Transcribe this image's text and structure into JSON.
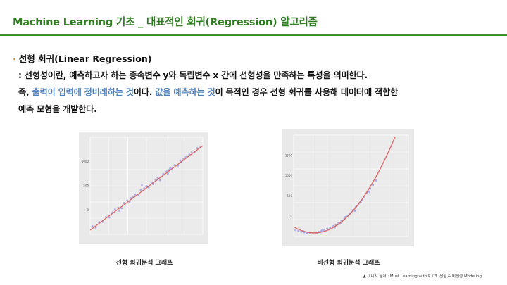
{
  "slide": {
    "title": "Machine Learning 기초 _ 대표적인 회귀(Regression) 알고리즘",
    "bullet": "선형 회귀(Linear Regression)",
    "line1": ": 선형성이란, 예측하고자 하는 종속변수 y와 독립변수 x 간에 선형성을 만족하는 특성을 의미한다.",
    "line2_a": "즉, ",
    "line2_hl1": "출력이 입력에 정비례하는 것",
    "line2_b": "이다. ",
    "line2_hl2": "값을 예측하는 것",
    "line2_c": "이 목적인 경우 선형 회귀를 사용해 데이터에 적합한",
    "line3": "예측 모형을 개발한다.",
    "caption_linear": "선형 회귀분석 그래프",
    "caption_nonlinear": "비선형 회귀분석 그래프",
    "source": "▲ 이미지 출처 : Must Learning with R / 3. 선형 & 비선형 Modeling"
  },
  "chart_data": [
    {
      "type": "scatter",
      "title": "",
      "xlabel": "",
      "ylabel": "",
      "xlim": [
        0,
        10
      ],
      "ylim": [
        -1,
        22
      ],
      "ytick_labels": [
        "1000",
        "500",
        "0"
      ],
      "xtick_labels": [
        "",
        "",
        ""
      ],
      "fit_line": {
        "x": [
          0,
          10
        ],
        "y": [
          0,
          20
        ]
      },
      "colors": {
        "points": "#a8a8e8",
        "fit": "#d9534f",
        "panel": "#e9e9e9"
      },
      "points": [
        [
          0.2,
          0.9
        ],
        [
          0.5,
          0.6
        ],
        [
          0.8,
          1.9
        ],
        [
          1.1,
          2.0
        ],
        [
          1.4,
          3.1
        ],
        [
          1.7,
          3.0
        ],
        [
          2.0,
          4.2
        ],
        [
          2.2,
          4.9
        ],
        [
          2.5,
          5.3
        ],
        [
          2.8,
          5.2
        ],
        [
          3.0,
          6.4
        ],
        [
          3.3,
          7.0
        ],
        [
          3.5,
          6.6
        ],
        [
          3.8,
          7.9
        ],
        [
          4.0,
          8.4
        ],
        [
          4.3,
          8.2
        ],
        [
          4.5,
          9.5
        ],
        [
          4.8,
          9.9
        ],
        [
          5.0,
          10.4
        ],
        [
          5.2,
          10.1
        ],
        [
          5.5,
          11.3
        ],
        [
          5.8,
          11.9
        ],
        [
          6.0,
          12.4
        ],
        [
          6.2,
          11.8
        ],
        [
          6.5,
          13.3
        ],
        [
          6.8,
          13.9
        ],
        [
          7.0,
          14.2
        ],
        [
          7.3,
          14.8
        ],
        [
          7.5,
          15.4
        ],
        [
          7.8,
          15.3
        ],
        [
          8.0,
          16.5
        ],
        [
          8.3,
          16.8
        ],
        [
          8.5,
          17.3
        ],
        [
          8.8,
          17.9
        ],
        [
          9.0,
          18.4
        ],
        [
          9.3,
          18.6
        ],
        [
          9.5,
          19.4
        ],
        [
          9.8,
          19.7
        ],
        [
          4.6,
          10.6
        ],
        [
          6.9,
          13.4
        ],
        [
          2.6,
          4.6
        ],
        [
          5.6,
          10.9
        ],
        [
          8.1,
          16.1
        ],
        [
          3.6,
          7.6
        ],
        [
          7.1,
          14.6
        ],
        [
          1.9,
          4.0
        ]
      ]
    },
    {
      "type": "scatter",
      "title": "",
      "xlabel": "",
      "ylabel": "",
      "xlim": [
        -2,
        10
      ],
      "ylim": [
        -5,
        135
      ],
      "ytick_labels": [
        "1500",
        "1000",
        "500",
        "0"
      ],
      "xtick_labels": [
        "",
        "",
        ""
      ],
      "fit_curve": "quadratic",
      "colors": {
        "points": "#a8a8e8",
        "fit": "#d9534f",
        "panel": "#e9e9e9"
      },
      "points": [
        [
          -1.8,
          3.9
        ],
        [
          -1.5,
          2.5
        ],
        [
          -1.2,
          1.6
        ],
        [
          -0.9,
          0.9
        ],
        [
          -0.6,
          0.2
        ],
        [
          -0.3,
          -0.4
        ],
        [
          0.0,
          0.3
        ],
        [
          0.3,
          0.6
        ],
        [
          0.6,
          1.5
        ],
        [
          0.9,
          2.3
        ],
        [
          1.2,
          3.8
        ],
        [
          1.5,
          5.9
        ],
        [
          1.8,
          6.8
        ],
        [
          2.1,
          9.1
        ],
        [
          2.4,
          11.1
        ],
        [
          2.7,
          13.6
        ],
        [
          3.0,
          16.9
        ],
        [
          3.3,
          19.4
        ],
        [
          3.6,
          23.6
        ],
        [
          3.9,
          27.0
        ],
        [
          4.2,
          31.2
        ],
        [
          4.5,
          35.5
        ],
        [
          4.8,
          40.2
        ],
        [
          5.1,
          45.1
        ],
        [
          5.4,
          49.8
        ],
        [
          5.7,
          55.2
        ],
        [
          6.0,
          61.1
        ],
        [
          6.3,
          66.2
        ],
        [
          6.6,
          72.4
        ],
        [
          1.0,
          4.1
        ],
        [
          2.9,
          12.8
        ],
        [
          3.4,
          21.8
        ],
        [
          4.4,
          30.5
        ],
        [
          5.0,
          42.5
        ],
        [
          5.9,
          56.9
        ],
        [
          0.5,
          -0.6
        ],
        [
          -1.0,
          2.4
        ],
        [
          2.3,
          7.6
        ]
      ]
    }
  ]
}
